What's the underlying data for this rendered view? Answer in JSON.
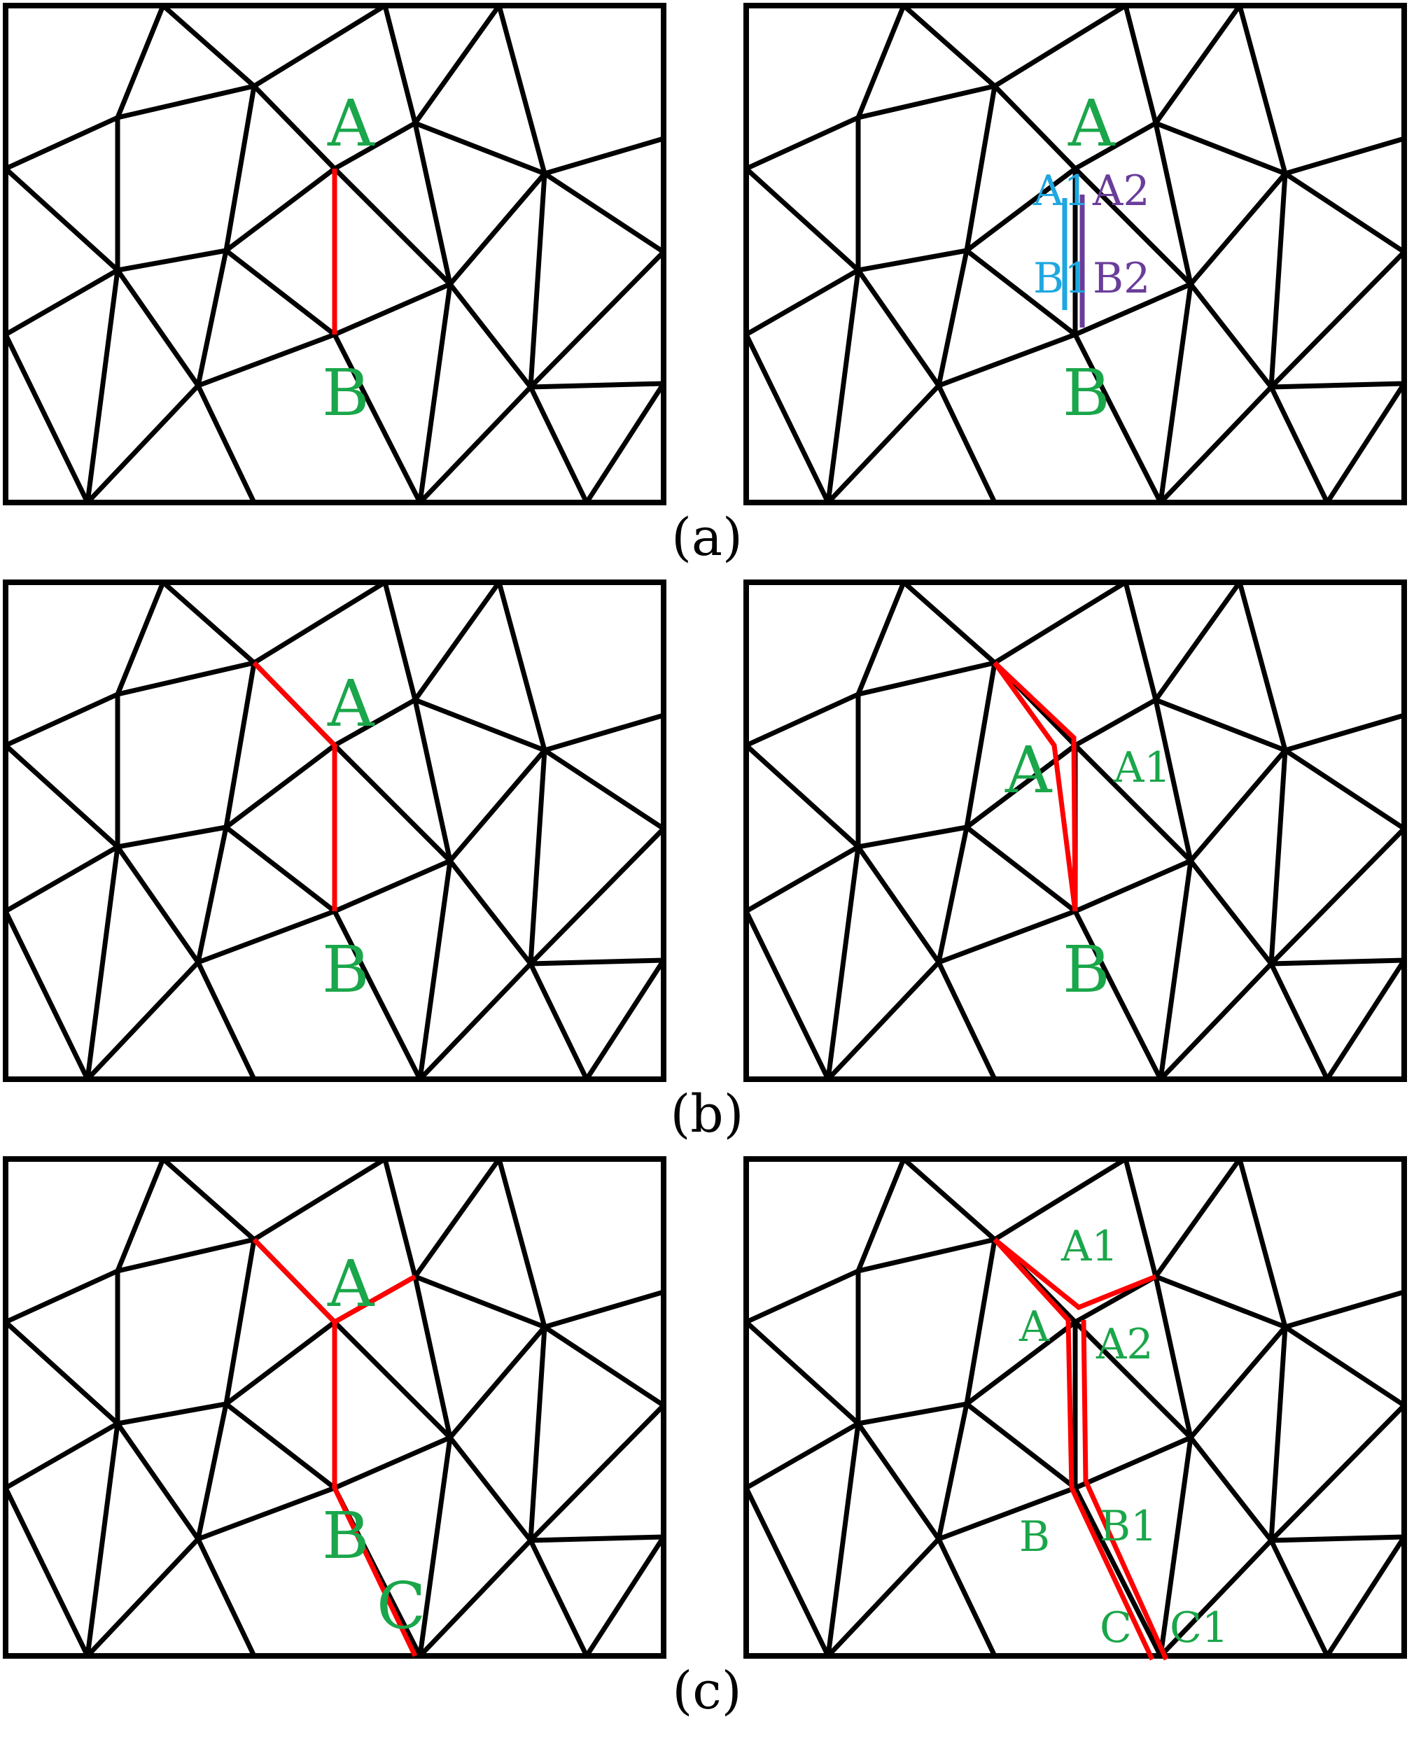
{
  "colors": {
    "mesh": "#000000",
    "crack": "#ff0000",
    "label_green": "#1aa64a",
    "label_blue": "#1ea7e0",
    "label_purple": "#6a3d9a"
  },
  "captions": [
    "(a)",
    "(b)",
    "(c)"
  ],
  "panels": [
    {
      "id": "a-left",
      "labels": [
        {
          "text": "A",
          "color": "label_green"
        },
        {
          "text": "B",
          "color": "label_green"
        }
      ]
    },
    {
      "id": "a-right",
      "labels": [
        {
          "text": "A",
          "color": "label_green"
        },
        {
          "text": "B",
          "color": "label_green"
        },
        {
          "text": "A1",
          "color": "label_blue"
        },
        {
          "text": "B1",
          "color": "label_blue"
        },
        {
          "text": "A2",
          "color": "label_purple"
        },
        {
          "text": "B2",
          "color": "label_purple"
        }
      ]
    },
    {
      "id": "b-left",
      "labels": [
        {
          "text": "A",
          "color": "label_green"
        },
        {
          "text": "B",
          "color": "label_green"
        }
      ]
    },
    {
      "id": "b-right",
      "labels": [
        {
          "text": "A",
          "color": "label_green"
        },
        {
          "text": "A1",
          "color": "label_green"
        },
        {
          "text": "B",
          "color": "label_green"
        }
      ]
    },
    {
      "id": "c-left",
      "labels": [
        {
          "text": "A",
          "color": "label_green"
        },
        {
          "text": "B",
          "color": "label_green"
        },
        {
          "text": "C",
          "color": "label_green"
        }
      ]
    },
    {
      "id": "c-right",
      "labels": [
        {
          "text": "A1",
          "color": "label_green"
        },
        {
          "text": "A",
          "color": "label_green"
        },
        {
          "text": "A2",
          "color": "label_green"
        },
        {
          "text": "B",
          "color": "label_green"
        },
        {
          "text": "B1",
          "color": "label_green"
        },
        {
          "text": "C",
          "color": "label_green"
        },
        {
          "text": "C1",
          "color": "label_green"
        }
      ]
    }
  ]
}
